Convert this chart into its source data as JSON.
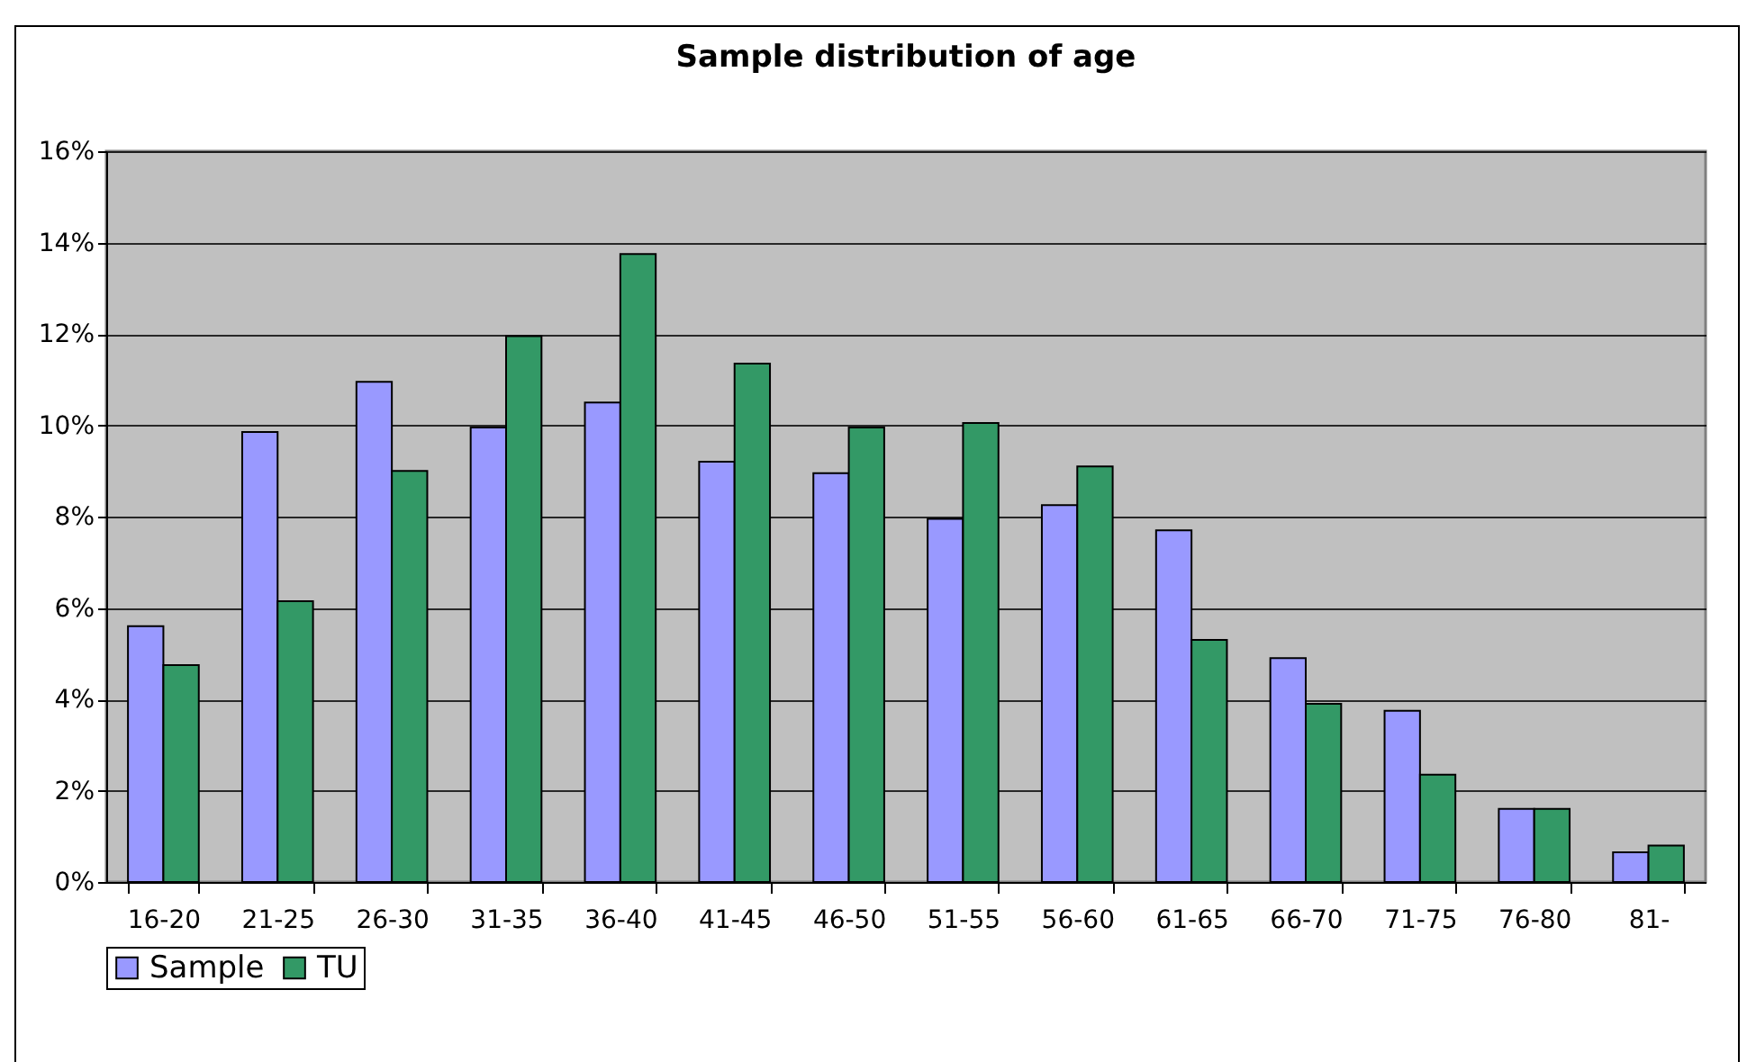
{
  "chart_data": {
    "type": "bar",
    "title": "Sample distribution of age",
    "categories": [
      "16-20",
      "21-25",
      "26-30",
      "31-35",
      "36-40",
      "41-45",
      "46-50",
      "51-55",
      "56-60",
      "61-65",
      "66-70",
      "71-75",
      "76-80",
      "81-"
    ],
    "series": [
      {
        "name": "Sample",
        "color": "#9999ff",
        "values": [
          5.6,
          9.85,
          10.95,
          9.95,
          10.5,
          9.2,
          8.95,
          7.95,
          8.25,
          7.7,
          4.9,
          3.75,
          1.6,
          0.65
        ]
      },
      {
        "name": "TU",
        "color": "#339966",
        "values": [
          4.75,
          6.15,
          9.0,
          11.95,
          13.75,
          11.35,
          9.95,
          10.05,
          9.1,
          5.3,
          3.9,
          2.35,
          1.6,
          0.8
        ]
      }
    ],
    "ylim": [
      0,
      16
    ],
    "yticks": [
      {
        "value": 0,
        "label": "0%"
      },
      {
        "value": 2,
        "label": "2%"
      },
      {
        "value": 4,
        "label": "4%"
      },
      {
        "value": 6,
        "label": "6%"
      },
      {
        "value": 8,
        "label": "8%"
      },
      {
        "value": 10,
        "label": "10%"
      },
      {
        "value": 12,
        "label": "12%"
      },
      {
        "value": 14,
        "label": "14%"
      },
      {
        "value": 16,
        "label": "16%"
      }
    ],
    "grid": "y",
    "legend": "bottom"
  }
}
